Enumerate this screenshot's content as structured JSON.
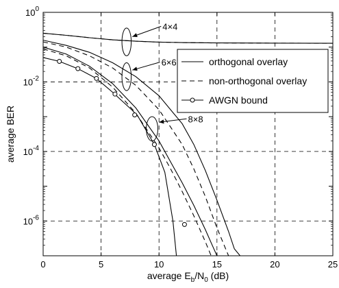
{
  "chart_data": {
    "type": "line",
    "xlabel": {
      "main": "average E",
      "sub1": "b",
      "mid": "/N",
      "sub2": "0",
      "tail": " (dB)"
    },
    "ylabel": "average BER",
    "xlim": [
      0,
      25
    ],
    "ylim_exp": [
      -7,
      0
    ],
    "y_scale": "log",
    "grid": true,
    "grid_style": "dashed",
    "x_ticks": [
      "0",
      "5",
      "10",
      "15",
      "20",
      "25"
    ],
    "x_tick_values": [
      0,
      5,
      10,
      15,
      20,
      25
    ],
    "y_ticks": [
      {
        "base": "10",
        "exp": "0",
        "value": 0
      },
      {
        "base": "10",
        "exp": "-2",
        "value": -2
      },
      {
        "base": "10",
        "exp": "-4",
        "value": -4
      },
      {
        "base": "10",
        "exp": "-6",
        "value": -6
      }
    ],
    "legend": {
      "placement": "top-right",
      "entries": [
        {
          "label": "orthogonal overlay",
          "style": "solid"
        },
        {
          "label": "non-orthogonal overlay",
          "style": "dashed"
        },
        {
          "label": "AWGN bound",
          "style": "circle"
        }
      ]
    },
    "annotations": [
      {
        "label": "4×4",
        "ellipse_center": [
          7.2,
          -0.85
        ],
        "ellipse_r": [
          0.4,
          0.4
        ],
        "text_pos": [
          10.3,
          -0.5
        ],
        "arrow_to": [
          7.7,
          -0.7
        ]
      },
      {
        "label": "6×6",
        "ellipse_center": [
          7.2,
          -1.85
        ],
        "ellipse_r": [
          0.4,
          0.4
        ],
        "text_pos": [
          10.2,
          -1.53
        ],
        "arrow_to": [
          7.7,
          -1.66
        ]
      },
      {
        "label": "8×8",
        "ellipse_center": [
          9.4,
          -3.35
        ],
        "ellipse_r": [
          0.5,
          0.35
        ],
        "text_pos": [
          12.5,
          -3.16
        ],
        "arrow_to": [
          10.0,
          -3.16
        ]
      }
    ],
    "series": [
      {
        "group": "4×4",
        "style": "solid",
        "points": [
          [
            0,
            -0.6
          ],
          [
            2,
            -0.66
          ],
          [
            4,
            -0.73
          ],
          [
            6,
            -0.79
          ],
          [
            8,
            -0.83
          ],
          [
            10,
            -0.855
          ],
          [
            12,
            -0.87
          ],
          [
            15,
            -0.88
          ],
          [
            20,
            -0.885
          ],
          [
            25,
            -0.89
          ]
        ]
      },
      {
        "group": "4×4",
        "style": "dashed",
        "points": [
          [
            0,
            -0.6
          ],
          [
            2,
            -0.66
          ],
          [
            4,
            -0.73
          ],
          [
            6,
            -0.79
          ],
          [
            8,
            -0.83
          ],
          [
            10,
            -0.855
          ],
          [
            12,
            -0.87
          ],
          [
            15,
            -0.88
          ],
          [
            20,
            -0.885
          ],
          [
            25,
            -0.89
          ]
        ]
      },
      {
        "group": "6×6",
        "style": "solid",
        "points": [
          [
            0,
            -0.8
          ],
          [
            2,
            -0.95
          ],
          [
            4,
            -1.15
          ],
          [
            6,
            -1.45
          ],
          [
            8,
            -1.85
          ],
          [
            10,
            -2.4
          ],
          [
            12,
            -3.2
          ],
          [
            13,
            -3.8
          ],
          [
            14,
            -4.55
          ],
          [
            15,
            -5.4
          ],
          [
            16,
            -6.3
          ],
          [
            16.5,
            -6.8
          ],
          [
            17,
            -7.0
          ]
        ]
      },
      {
        "group": "6×6",
        "style": "dashed",
        "points": [
          [
            0,
            -0.85
          ],
          [
            2,
            -1.0
          ],
          [
            4,
            -1.25
          ],
          [
            6,
            -1.6
          ],
          [
            8,
            -2.1
          ],
          [
            10,
            -2.8
          ],
          [
            12,
            -3.8
          ],
          [
            13,
            -4.5
          ],
          [
            14,
            -5.3
          ],
          [
            15,
            -6.2
          ],
          [
            16,
            -7.0
          ]
        ]
      },
      {
        "group": "8×8",
        "style": "solid",
        "points": [
          [
            0,
            -1.0
          ],
          [
            2,
            -1.2
          ],
          [
            4,
            -1.55
          ],
          [
            6,
            -2.05
          ],
          [
            8,
            -2.75
          ],
          [
            10,
            -3.7
          ],
          [
            11,
            -4.3
          ],
          [
            12,
            -4.9
          ],
          [
            13,
            -5.55
          ],
          [
            14,
            -6.25
          ],
          [
            14.6,
            -6.7
          ],
          [
            15,
            -7.0
          ]
        ]
      },
      {
        "group": "8×8",
        "style": "dashed",
        "points": [
          [
            0,
            -1.05
          ],
          [
            2,
            -1.25
          ],
          [
            4,
            -1.6
          ],
          [
            6,
            -2.15
          ],
          [
            8,
            -2.9
          ],
          [
            10,
            -3.9
          ],
          [
            11,
            -4.5
          ],
          [
            12,
            -5.15
          ],
          [
            13,
            -5.85
          ],
          [
            14,
            -6.6
          ],
          [
            14.5,
            -7.0
          ]
        ]
      },
      {
        "group": "AWGN",
        "style": "solid-markers",
        "points": [
          [
            0,
            -1.3
          ],
          [
            1.4,
            -1.41
          ],
          [
            3,
            -1.62
          ],
          [
            4.6,
            -1.9
          ],
          [
            6,
            -2.3
          ],
          [
            7.7,
            -2.82
          ],
          [
            8.2,
            -3.0
          ],
          [
            9.6,
            -3.8
          ],
          [
            10.5,
            -4.6
          ],
          [
            11.2,
            -6.0
          ],
          [
            11.5,
            -7.0
          ]
        ],
        "markers": [
          [
            1.4,
            -1.41
          ],
          [
            3,
            -1.62
          ],
          [
            4.6,
            -1.9
          ],
          [
            6.2,
            -2.35
          ],
          [
            7.9,
            -2.95
          ],
          [
            9.6,
            -3.8
          ],
          [
            12.2,
            -6.1
          ]
        ]
      }
    ]
  }
}
